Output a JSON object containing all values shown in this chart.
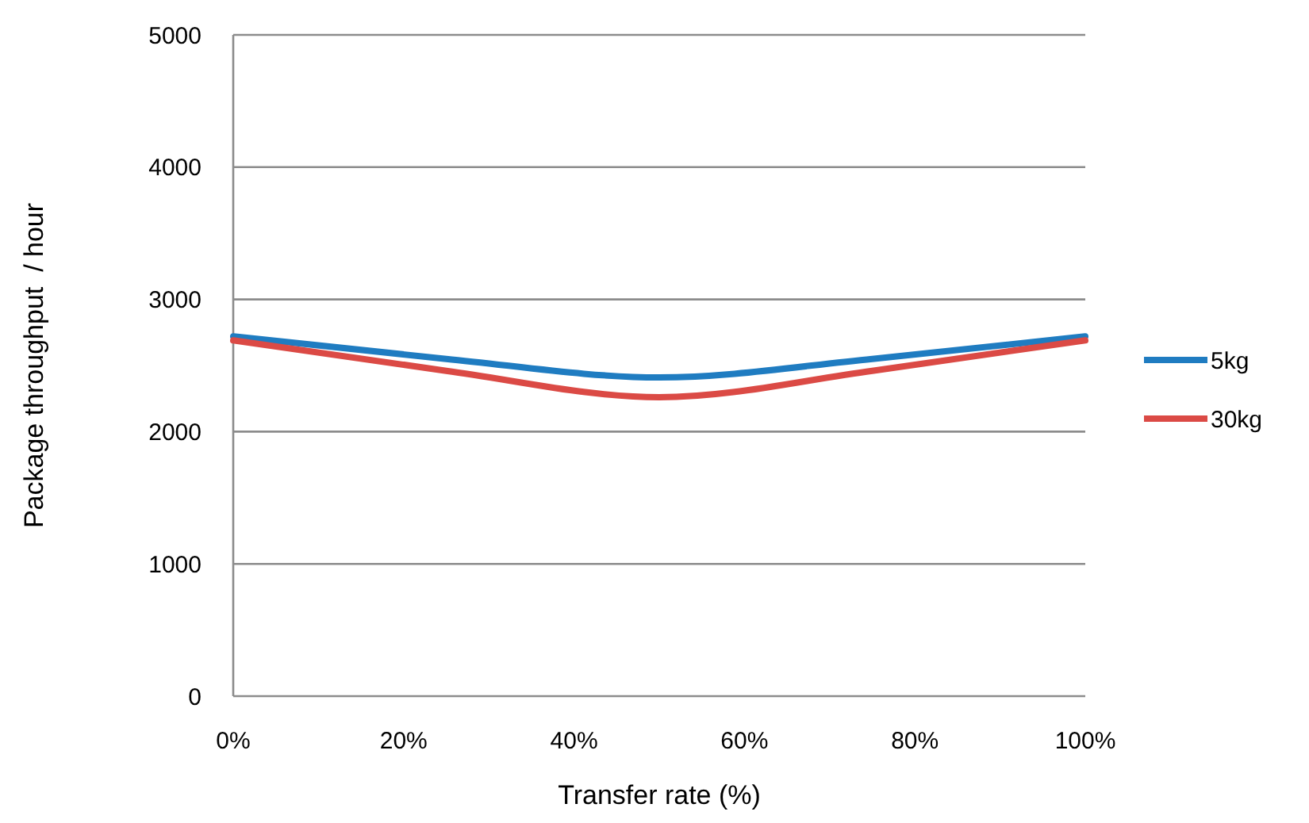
{
  "chart_data": {
    "type": "line",
    "xlabel": "Transfer rate (%)",
    "ylabel": "Package throughput  / hour",
    "x": [
      0,
      25,
      50,
      75,
      100
    ],
    "series": [
      {
        "name": "5kg",
        "color": "#1f7cc1",
        "values": [
          2720,
          2550,
          2410,
          2550,
          2720
        ]
      },
      {
        "name": "30kg",
        "color": "#db4a45",
        "values": [
          2690,
          2460,
          2260,
          2460,
          2690
        ]
      }
    ],
    "xlim": [
      0,
      100
    ],
    "xticks": [
      {
        "value": 0,
        "label": "0%"
      },
      {
        "value": 20,
        "label": "20%"
      },
      {
        "value": 40,
        "label": "40%"
      },
      {
        "value": 60,
        "label": "60%"
      },
      {
        "value": 80,
        "label": "80%"
      },
      {
        "value": 100,
        "label": "100%"
      }
    ],
    "ylim": [
      0,
      5000
    ],
    "yticks": [
      0,
      1000,
      2000,
      3000,
      4000,
      5000
    ],
    "grid": "y",
    "legend": "right",
    "marker": "none",
    "line_style": "solid"
  }
}
